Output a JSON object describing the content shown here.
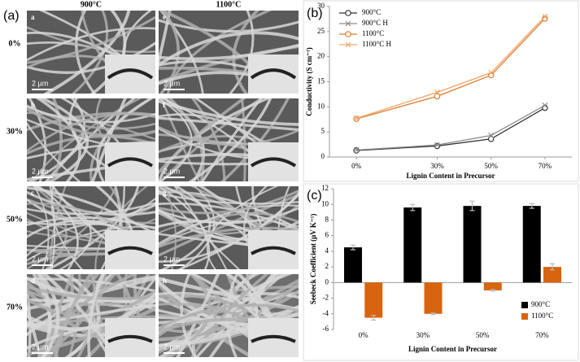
{
  "panel_a": {
    "label": "(a)",
    "columns": [
      "900°C",
      "1100°C"
    ],
    "rows": [
      "0%",
      "30%",
      "50%",
      "70%"
    ],
    "image_letters": [
      "a",
      "e",
      "b",
      "f",
      "c",
      "g",
      "d",
      "h"
    ],
    "scale_bar": "2 μm"
  },
  "chart_data": [
    {
      "type": "line",
      "panel_label": "(b)",
      "x_label": "Lignin Content in Precursor",
      "y_label": "Conductivity (S cm⁻¹)",
      "x": [
        0,
        30,
        50,
        70
      ],
      "xlim": [
        -10,
        80
      ],
      "xticks": [
        {
          "value": 0,
          "label": "0%"
        },
        {
          "value": 30,
          "label": "30%"
        },
        {
          "value": 50,
          "label": "50%"
        },
        {
          "value": 70,
          "label": "70%"
        }
      ],
      "ylim": [
        0,
        30
      ],
      "yticks": [
        0,
        5,
        10,
        15,
        20,
        25,
        30
      ],
      "legend": "top-left",
      "series": [
        {
          "name": "900°C",
          "color": "#333333",
          "marker": "circle",
          "values": [
            1.3,
            2.2,
            3.6,
            9.8
          ]
        },
        {
          "name": "900°C H",
          "color": "#8c8c8c",
          "marker": "x",
          "values": [
            1.4,
            2.4,
            4.3,
            10.3
          ]
        },
        {
          "name": "1100°C",
          "color": "#e07b2a",
          "marker": "circle",
          "values": [
            7.6,
            12.1,
            16.3,
            27.6
          ]
        },
        {
          "name": "1100°C H",
          "color": "#f2a46a",
          "marker": "x",
          "values": [
            7.7,
            12.9,
            16.8,
            28.0
          ]
        }
      ]
    },
    {
      "type": "bar",
      "panel_label": "(c)",
      "x_label": "Lignin Content in Precursor",
      "y_label": "Seebeck Coefficient (μV K⁻¹)",
      "categories": [
        "0%",
        "30%",
        "50%",
        "70%"
      ],
      "ylim": [
        -6,
        12
      ],
      "yticks": [
        -6,
        -4,
        -2,
        0,
        2,
        4,
        6,
        8,
        10,
        12
      ],
      "legend": "bottom-right",
      "series": [
        {
          "name": "900°C",
          "color": "#000000",
          "values": [
            4.5,
            9.6,
            9.8,
            9.8
          ],
          "errors": [
            0.3,
            0.4,
            0.6,
            0.3
          ]
        },
        {
          "name": "1100°C",
          "color": "#d9640f",
          "values": [
            -4.5,
            -4.0,
            -1.0,
            2.0
          ],
          "errors": [
            0.3,
            0.1,
            0.1,
            0.4
          ]
        }
      ]
    }
  ]
}
